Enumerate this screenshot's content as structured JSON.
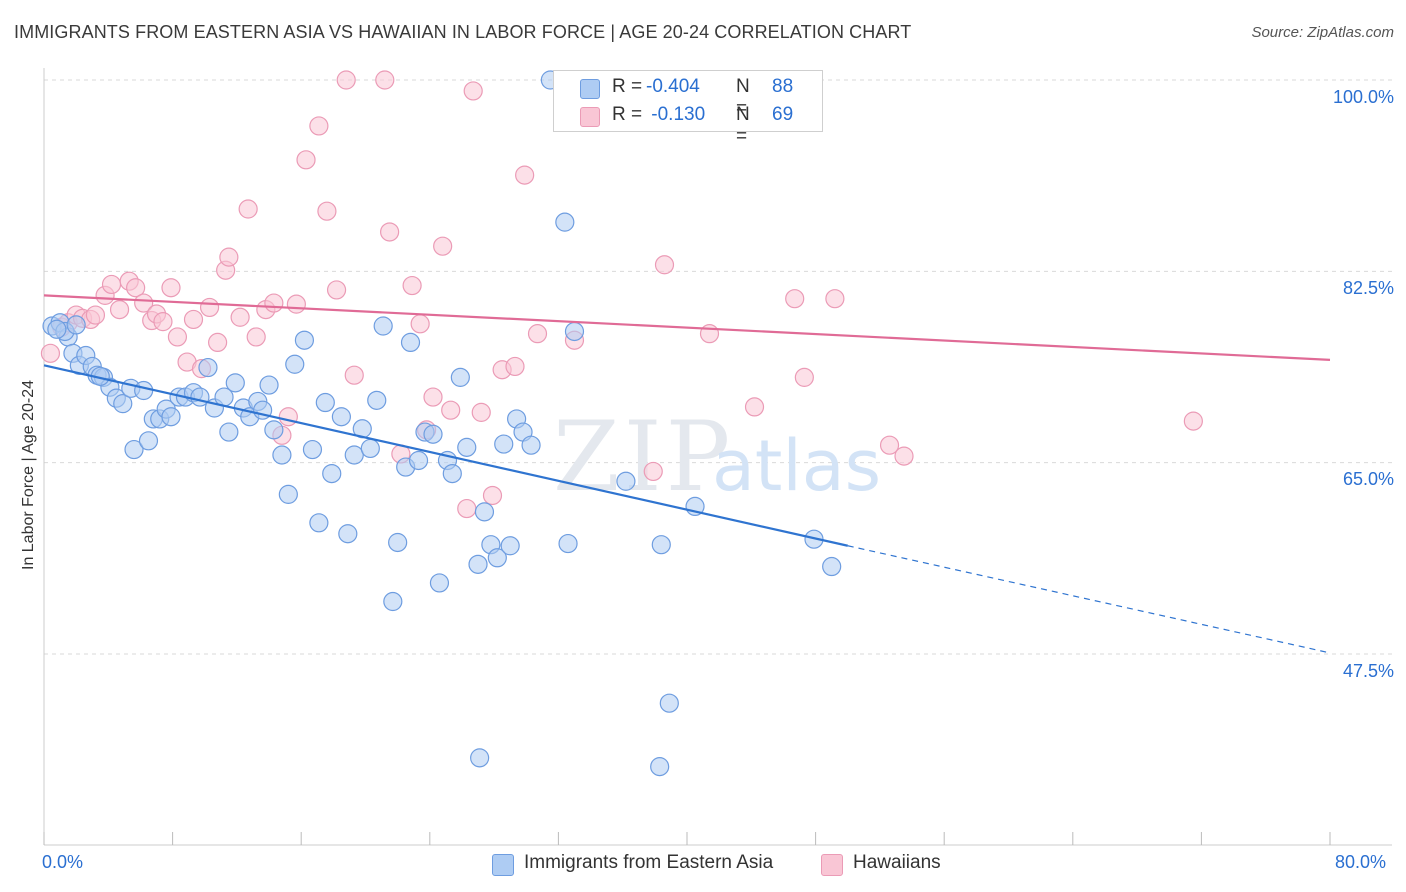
{
  "title": "IMMIGRANTS FROM EASTERN ASIA VS HAWAIIAN IN LABOR FORCE | AGE 20-24 CORRELATION CHART",
  "source": "Source: ZipAtlas.com",
  "watermark": {
    "zip": "ZIP",
    "atlas": "atlas"
  },
  "legend_top": {
    "rows": [
      {
        "r_label": "R = ",
        "r_value": "-0.404",
        "n_label": "N = ",
        "n_value": "88"
      },
      {
        "r_label": "R = ",
        "r_value": " -0.130",
        "n_label": "N = ",
        "n_value": "69"
      }
    ]
  },
  "legend_bottom": [
    {
      "label": "Immigrants from Eastern Asia"
    },
    {
      "label": "Hawaiians"
    }
  ],
  "axis": {
    "x_min_label": "0.0%",
    "x_max_label": "80.0%",
    "y_labels": [
      "100.0%",
      "82.5%",
      "65.0%",
      "47.5%"
    ]
  },
  "colors": {
    "blue_fill": "#aeccf3",
    "blue_stroke": "#6e9de0",
    "blue_line": "#2f74d0",
    "pink_fill": "#f9c6d5",
    "pink_stroke": "#eb9bb6",
    "pink_line": "#e06b96",
    "tick_text": "#2a6fd1",
    "grid": "#d9d9d9"
  },
  "chart_data": {
    "type": "scatter",
    "title": "IMMIGRANTS FROM EASTERN ASIA VS HAWAIIAN IN LABOR FORCE | AGE 20-24 CORRELATION CHART",
    "xlabel": "",
    "ylabel": "In Labor Force | Age 20-24",
    "xlim": [
      0,
      80
    ],
    "ylim": [
      34,
      103
    ],
    "y_ticks": [
      47.5,
      65.0,
      82.5,
      100.0
    ],
    "grid": true,
    "legend_position": "top-center",
    "series": [
      {
        "name": "Immigrants from Eastern Asia",
        "color": "#aeccf3",
        "r": -0.404,
        "n": 88,
        "trend": {
          "x": [
            0,
            50
          ],
          "y": [
            73.9,
            57.4
          ],
          "dashed_to": [
            80,
            47.6
          ]
        },
        "points": [
          [
            0.5,
            77.5
          ],
          [
            1.0,
            77.8
          ],
          [
            1.5,
            76.5
          ],
          [
            1.8,
            75.0
          ],
          [
            2.2,
            73.9
          ],
          [
            2.6,
            74.8
          ],
          [
            3.0,
            73.8
          ],
          [
            3.3,
            73.0
          ],
          [
            3.7,
            72.8
          ],
          [
            4.1,
            71.9
          ],
          [
            4.5,
            70.9
          ],
          [
            4.9,
            70.4
          ],
          [
            5.4,
            71.8
          ],
          [
            5.6,
            66.2
          ],
          [
            6.2,
            71.6
          ],
          [
            6.5,
            67.0
          ],
          [
            6.8,
            69.0
          ],
          [
            7.2,
            69.0
          ],
          [
            7.6,
            69.9
          ],
          [
            7.9,
            69.2
          ],
          [
            8.4,
            71.0
          ],
          [
            8.8,
            71.0
          ],
          [
            9.3,
            71.4
          ],
          [
            9.7,
            71.0
          ],
          [
            10.2,
            73.7
          ],
          [
            10.6,
            70.0
          ],
          [
            11.2,
            71.0
          ],
          [
            11.5,
            67.8
          ],
          [
            11.9,
            72.3
          ],
          [
            12.4,
            70.0
          ],
          [
            12.8,
            69.2
          ],
          [
            13.3,
            70.6
          ],
          [
            13.6,
            69.8
          ],
          [
            14.0,
            72.1
          ],
          [
            14.3,
            68.0
          ],
          [
            14.8,
            65.7
          ],
          [
            15.2,
            62.1
          ],
          [
            15.6,
            74.0
          ],
          [
            16.2,
            76.2
          ],
          [
            16.7,
            66.2
          ],
          [
            17.1,
            59.5
          ],
          [
            17.5,
            70.5
          ],
          [
            17.9,
            64.0
          ],
          [
            18.5,
            69.2
          ],
          [
            18.9,
            58.5
          ],
          [
            19.3,
            65.7
          ],
          [
            19.8,
            68.1
          ],
          [
            20.3,
            66.3
          ],
          [
            20.7,
            70.7
          ],
          [
            21.1,
            77.5
          ],
          [
            21.7,
            52.3
          ],
          [
            22.0,
            57.7
          ],
          [
            22.5,
            64.6
          ],
          [
            22.8,
            76.0
          ],
          [
            23.3,
            65.2
          ],
          [
            23.7,
            67.8
          ],
          [
            24.2,
            67.6
          ],
          [
            24.6,
            54.0
          ],
          [
            25.1,
            65.2
          ],
          [
            25.4,
            64.0
          ],
          [
            25.9,
            72.8
          ],
          [
            26.3,
            66.4
          ],
          [
            27.0,
            55.7
          ],
          [
            27.4,
            60.5
          ],
          [
            27.8,
            57.5
          ],
          [
            28.2,
            56.3
          ],
          [
            28.6,
            66.7
          ],
          [
            29.0,
            57.4
          ],
          [
            29.4,
            69.0
          ],
          [
            29.8,
            67.8
          ],
          [
            30.3,
            66.6
          ],
          [
            31.5,
            100.0
          ],
          [
            32.3,
            100.0
          ],
          [
            32.4,
            87.0
          ],
          [
            32.6,
            57.6
          ],
          [
            33.0,
            77.0
          ],
          [
            36.2,
            63.3
          ],
          [
            38.4,
            57.5
          ],
          [
            38.9,
            43.0
          ],
          [
            40.5,
            61.0
          ],
          [
            47.9,
            58.0
          ],
          [
            49.0,
            55.5
          ],
          [
            27.1,
            38.0
          ],
          [
            38.3,
            37.2
          ],
          [
            1.3,
            77.0
          ],
          [
            2.0,
            77.6
          ],
          [
            0.8,
            77.2
          ],
          [
            3.5,
            72.9
          ]
        ]
      },
      {
        "name": "Hawaiians",
        "color": "#f9c6d5",
        "r": -0.13,
        "n": 69,
        "trend": {
          "x": [
            0,
            80
          ],
          "y": [
            80.3,
            74.4
          ]
        },
        "points": [
          [
            0.4,
            75.0
          ],
          [
            1.1,
            77.4
          ],
          [
            1.5,
            77.8
          ],
          [
            2.0,
            78.5
          ],
          [
            2.4,
            78.2
          ],
          [
            2.9,
            78.1
          ],
          [
            3.2,
            78.5
          ],
          [
            3.8,
            80.3
          ],
          [
            4.2,
            81.3
          ],
          [
            4.7,
            79.0
          ],
          [
            5.3,
            81.6
          ],
          [
            5.7,
            81.0
          ],
          [
            6.2,
            79.6
          ],
          [
            6.7,
            78.0
          ],
          [
            7.0,
            78.6
          ],
          [
            7.4,
            77.9
          ],
          [
            7.9,
            81.0
          ],
          [
            8.3,
            76.5
          ],
          [
            8.9,
            74.2
          ],
          [
            9.3,
            78.1
          ],
          [
            9.8,
            73.6
          ],
          [
            10.3,
            79.2
          ],
          [
            10.8,
            76.0
          ],
          [
            11.3,
            82.6
          ],
          [
            11.5,
            83.8
          ],
          [
            12.2,
            78.3
          ],
          [
            12.7,
            88.2
          ],
          [
            13.2,
            76.5
          ],
          [
            13.8,
            79.0
          ],
          [
            14.3,
            79.6
          ],
          [
            14.8,
            67.5
          ],
          [
            15.2,
            69.2
          ],
          [
            15.7,
            79.5
          ],
          [
            16.3,
            92.7
          ],
          [
            17.1,
            95.8
          ],
          [
            17.6,
            88.0
          ],
          [
            18.2,
            80.8
          ],
          [
            18.8,
            100.0
          ],
          [
            19.3,
            73.0
          ],
          [
            21.2,
            100.0
          ],
          [
            21.5,
            86.1
          ],
          [
            22.2,
            65.8
          ],
          [
            22.9,
            81.2
          ],
          [
            23.4,
            77.7
          ],
          [
            23.8,
            68.0
          ],
          [
            24.2,
            71.0
          ],
          [
            24.8,
            84.8
          ],
          [
            25.3,
            69.8
          ],
          [
            26.3,
            60.8
          ],
          [
            27.2,
            69.6
          ],
          [
            27.9,
            62.0
          ],
          [
            28.5,
            73.5
          ],
          [
            29.3,
            73.8
          ],
          [
            29.9,
            91.3
          ],
          [
            30.7,
            76.8
          ],
          [
            33.0,
            76.2
          ],
          [
            36.8,
            99.2
          ],
          [
            37.9,
            64.2
          ],
          [
            38.6,
            83.1
          ],
          [
            41.4,
            76.8
          ],
          [
            43.6,
            100.0
          ],
          [
            44.2,
            70.1
          ],
          [
            46.7,
            80.0
          ],
          [
            47.3,
            72.8
          ],
          [
            49.2,
            80.0
          ],
          [
            52.6,
            66.6
          ],
          [
            53.5,
            65.6
          ],
          [
            71.5,
            68.8
          ],
          [
            26.7,
            99.0
          ]
        ]
      }
    ]
  }
}
